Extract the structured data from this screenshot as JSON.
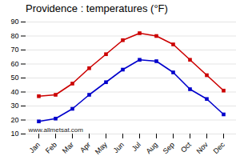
{
  "chart_data": {
    "type": "line",
    "title": "Providence : temperatures (°F)",
    "categories": [
      "Jan",
      "Feb",
      "Mar",
      "Apr",
      "May",
      "Jun",
      "Jul",
      "Aug",
      "Sep",
      "Oct",
      "Nov",
      "Dec"
    ],
    "series": [
      {
        "color": "#cc0000",
        "marker": "square",
        "values": [
          37,
          38,
          46,
          57,
          67,
          77,
          82,
          80,
          74,
          63,
          52,
          41
        ]
      },
      {
        "color": "#0000cc",
        "marker": "square",
        "values": [
          19,
          21,
          28,
          38,
          47,
          56,
          63,
          62,
          54,
          42,
          35,
          24
        ]
      }
    ],
    "ylim": [
      10,
      90
    ],
    "yticks": [
      10,
      20,
      30,
      40,
      50,
      60,
      70,
      80,
      90
    ],
    "grid": true,
    "annotations": [
      "www.allmetsat.com"
    ]
  }
}
